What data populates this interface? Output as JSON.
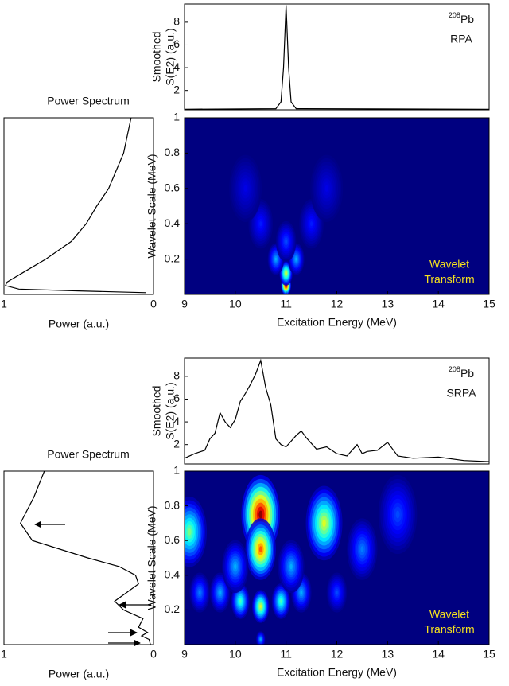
{
  "chart_data": [
    {
      "type": "line",
      "ylabel": [
        "Smoothed",
        "S(E2) (a.u.)"
      ],
      "annotation_sup": "208",
      "annotation": "Pb",
      "annotation2": "RPA",
      "x": [
        9,
        10.8,
        10.9,
        10.95,
        11,
        11.05,
        11.1,
        11.2,
        15
      ],
      "values": [
        0.35,
        0.4,
        1,
        4,
        9.5,
        4,
        1,
        0.4,
        0.35
      ],
      "color": "#000000",
      "xlim": [
        9,
        15
      ],
      "ylim": [
        0.3,
        9.6
      ],
      "yticks": [
        2,
        4,
        6,
        8
      ]
    },
    {
      "type": "heatmap",
      "ylabel": "Wavelet Scale (MeV)",
      "xlabel": "Excitation Energy (MeV)",
      "annotation": [
        "Wavelet",
        "Transform"
      ],
      "x": [
        11,
        11,
        10.8,
        11.2,
        11,
        10.5,
        11.5,
        10.2,
        11.8
      ],
      "y": [
        0.05,
        0.12,
        0.2,
        0.2,
        0.3,
        0.4,
        0.4,
        0.6,
        0.6
      ],
      "values": [
        1,
        0.6,
        0.3,
        0.3,
        0.2,
        0.15,
        0.15,
        0.1,
        0.1
      ],
      "clim": [
        0,
        1
      ],
      "xlim": [
        9,
        15
      ],
      "ylim": [
        0,
        1
      ],
      "xticks": [
        9,
        10,
        11,
        12,
        13,
        14,
        15
      ],
      "yticks": [
        0.2,
        0.4,
        0.6,
        0.8,
        1
      ]
    },
    {
      "type": "spectrum",
      "title": "Power Spectrum",
      "xlabel": "Power (a.u.)",
      "y": [
        1,
        0.8,
        0.6,
        0.5,
        0.4,
        0.3,
        0.2,
        0.15,
        0.1,
        0.07,
        0.05,
        0.03,
        0.02,
        0.01
      ],
      "values": [
        0.15,
        0.2,
        0.3,
        0.38,
        0.45,
        0.55,
        0.72,
        0.82,
        0.92,
        0.98,
        0.99,
        0.9,
        0.5,
        0.05
      ],
      "color": "#000000",
      "xlim": [
        1,
        0
      ],
      "ylim": [
        0,
        1
      ],
      "xticks": [
        1,
        0
      ]
    },
    {
      "type": "line",
      "ylabel": [
        "Smoothed",
        "S(E2) (a.u.)"
      ],
      "annotation_sup": "208",
      "annotation": "Pb",
      "annotation2": "SRPA",
      "x": [
        9,
        9.2,
        9.4,
        9.5,
        9.6,
        9.7,
        9.8,
        9.9,
        10,
        10.1,
        10.2,
        10.3,
        10.4,
        10.5,
        10.6,
        10.7,
        10.8,
        10.9,
        11,
        11.2,
        11.3,
        11.4,
        11.6,
        11.8,
        12,
        12.2,
        12.4,
        12.5,
        12.6,
        12.8,
        13,
        13.2,
        13.5,
        14,
        14.5,
        15
      ],
      "values": [
        0.8,
        1.2,
        1.5,
        2.5,
        3,
        4.8,
        4,
        3.5,
        4.2,
        5.8,
        6.5,
        7.3,
        8.2,
        9.4,
        7,
        5.5,
        2.5,
        2,
        1.8,
        2.8,
        3.2,
        2.6,
        1.6,
        1.8,
        1.2,
        1,
        2,
        1.2,
        1.4,
        1.5,
        2.2,
        1,
        0.8,
        0.9,
        0.6,
        0.5
      ],
      "color": "#000000",
      "xlim": [
        9,
        15
      ],
      "ylim": [
        0.3,
        9.6
      ],
      "yticks": [
        2,
        4,
        6,
        8
      ]
    },
    {
      "type": "heatmap",
      "ylabel": "Wavelet Scale (MeV)",
      "xlabel": "Excitation Energy (MeV)",
      "annotation": [
        "Wavelet",
        "Transform"
      ],
      "x": [
        10.5,
        10.5,
        9.1,
        11.75,
        10.5,
        10.1,
        10.9,
        9.7,
        11.3,
        10,
        11.1,
        12.5,
        13.2,
        10.5,
        12,
        9.3
      ],
      "y": [
        0.75,
        0.55,
        0.65,
        0.7,
        0.22,
        0.25,
        0.25,
        0.3,
        0.3,
        0.45,
        0.45,
        0.55,
        0.75,
        0.03,
        0.3,
        0.3
      ],
      "values": [
        1,
        0.8,
        0.5,
        0.6,
        0.6,
        0.45,
        0.45,
        0.3,
        0.3,
        0.3,
        0.3,
        0.25,
        0.2,
        0.3,
        0.2,
        0.25
      ],
      "clim": [
        0,
        1
      ],
      "xlim": [
        9,
        15
      ],
      "ylim": [
        0,
        1
      ],
      "xticks": [
        9,
        10,
        11,
        12,
        13,
        14,
        15
      ],
      "yticks": [
        0.2,
        0.4,
        0.6,
        0.8,
        1
      ]
    },
    {
      "type": "spectrum",
      "title": "Power Spectrum",
      "xlabel": "Power (a.u.)",
      "y": [
        1,
        0.85,
        0.7,
        0.6,
        0.5,
        0.45,
        0.4,
        0.35,
        0.3,
        0.25,
        0.2,
        0.15,
        0.1,
        0.07,
        0.05,
        0.03,
        0
      ],
      "values": [
        0.73,
        0.8,
        0.89,
        0.81,
        0.44,
        0.23,
        0.12,
        0.1,
        0.18,
        0.26,
        0.2,
        0.07,
        0.1,
        0.04,
        0.08,
        0.03,
        0.02
      ],
      "color": "#000000",
      "xlim": [
        1,
        0
      ],
      "ylim": [
        0,
        1
      ],
      "xticks": [
        1,
        0
      ]
    }
  ]
}
